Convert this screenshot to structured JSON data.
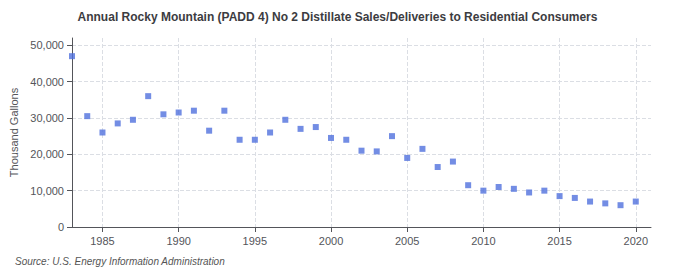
{
  "chart_data": {
    "type": "scatter",
    "title": "Annual Rocky Mountain (PADD 4) No 2 Distillate Sales/Deliveries to Residential Consumers",
    "ylabel": "Thousand Gallons",
    "source": "Source: U.S. Energy Information Administration",
    "marker": "square",
    "x": [
      1983,
      1984,
      1985,
      1986,
      1987,
      1988,
      1989,
      1990,
      1991,
      1992,
      1993,
      1994,
      1995,
      1996,
      1997,
      1998,
      1999,
      2000,
      2001,
      2002,
      2003,
      2004,
      2005,
      2006,
      2007,
      2008,
      2009,
      2010,
      2011,
      2012,
      2013,
      2014,
      2015,
      2016,
      2017,
      2018,
      2019,
      2020
    ],
    "values": [
      47000,
      30500,
      26000,
      28500,
      29500,
      36000,
      31000,
      31500,
      32000,
      26500,
      32000,
      24000,
      24000,
      26000,
      29500,
      27000,
      27500,
      24500,
      24000,
      21000,
      20800,
      25000,
      19000,
      21500,
      16500,
      18000,
      11500,
      10000,
      11000,
      10500,
      9500,
      10000,
      8500,
      8000,
      7000,
      6500,
      6000,
      7000
    ],
    "xlim": [
      1983,
      2021
    ],
    "xticks": [
      1985,
      1990,
      1995,
      2000,
      2005,
      2010,
      2015,
      2020
    ],
    "ylim": [
      0,
      52000
    ],
    "yticks": [
      0,
      {
        "value": 10000,
        "label": "10,000"
      },
      {
        "value": 20000,
        "label": "20,000"
      },
      {
        "value": 30000,
        "label": "30,000"
      },
      {
        "value": 40000,
        "label": "40,000"
      },
      {
        "value": 50000,
        "label": "50,000"
      }
    ],
    "grid": true
  }
}
